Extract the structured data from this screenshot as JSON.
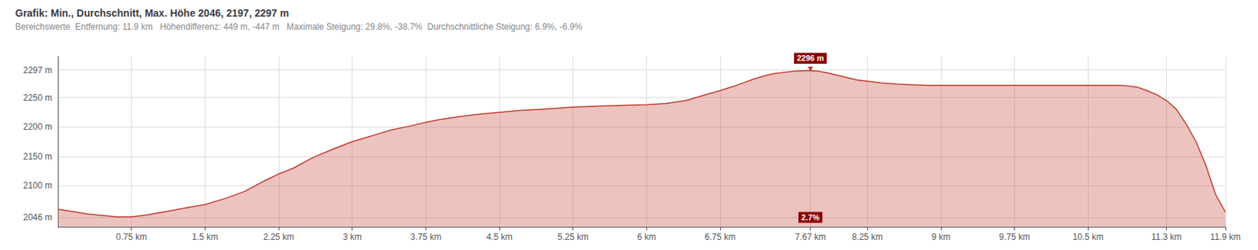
{
  "chart_data": {
    "type": "line",
    "title": "Grafik: Min., Durchschnitt, Max. Höhe 2046, 2197, 2297 m",
    "subtitle": "Bereichswerte  Entfernung: 11.9 km   Höhendifferenz: 449 m, -447 m   Maximale Steigung: 29.8%, -38.7%  Durchschnittliche Steigung: 6.9%, -6.9%",
    "x": [
      0.0,
      0.3,
      0.6,
      0.75,
      0.9,
      1.1,
      1.3,
      1.5,
      1.7,
      1.9,
      2.1,
      2.25,
      2.4,
      2.6,
      2.8,
      3.0,
      3.2,
      3.4,
      3.6,
      3.75,
      3.9,
      4.1,
      4.3,
      4.5,
      4.7,
      4.9,
      5.1,
      5.25,
      5.4,
      5.6,
      5.8,
      6.0,
      6.2,
      6.4,
      6.6,
      6.75,
      6.9,
      7.0,
      7.1,
      7.2,
      7.3,
      7.4,
      7.5,
      7.6,
      7.67,
      7.75,
      7.85,
      7.95,
      8.05,
      8.15,
      8.25,
      8.4,
      8.55,
      8.7,
      8.85,
      9.0,
      9.15,
      9.3,
      9.45,
      9.6,
      9.75,
      9.9,
      10.0,
      10.1,
      10.2,
      10.3,
      10.4,
      10.5,
      10.6,
      10.7,
      10.8,
      10.9,
      11.0,
      11.1,
      11.2,
      11.3,
      11.4,
      11.5,
      11.6,
      11.7,
      11.8,
      11.9
    ],
    "values": [
      2060,
      2052,
      2047,
      2047,
      2050,
      2056,
      2062,
      2068,
      2078,
      2090,
      2108,
      2120,
      2130,
      2148,
      2162,
      2175,
      2185,
      2195,
      2202,
      2208,
      2213,
      2218,
      2222,
      2225,
      2228,
      2230,
      2232,
      2234,
      2235,
      2236,
      2237,
      2238,
      2240,
      2245,
      2255,
      2262,
      2270,
      2276,
      2282,
      2287,
      2291,
      2293,
      2295,
      2296,
      2296,
      2295,
      2292,
      2288,
      2284,
      2280,
      2278,
      2275,
      2273,
      2272,
      2271,
      2271,
      2271,
      2271,
      2271,
      2271,
      2271,
      2271,
      2271,
      2271,
      2271,
      2271,
      2271,
      2271,
      2271,
      2271,
      2271,
      2270,
      2268,
      2262,
      2255,
      2245,
      2230,
      2205,
      2175,
      2135,
      2085,
      2055
    ],
    "color": "#c0392b",
    "xlim": [
      0,
      11.9
    ],
    "xticks": [
      {
        "value": 0.75,
        "label": "0.75 km"
      },
      {
        "value": 1.5,
        "label": "1.5 km"
      },
      {
        "value": 2.25,
        "label": "2.25 km"
      },
      {
        "value": 3.0,
        "label": "3 km"
      },
      {
        "value": 3.75,
        "label": "3.75 km"
      },
      {
        "value": 4.5,
        "label": "4.5 km"
      },
      {
        "value": 5.25,
        "label": "5.25 km"
      },
      {
        "value": 6.0,
        "label": "6 km"
      },
      {
        "value": 6.75,
        "label": "6.75 km"
      },
      {
        "value": 7.67,
        "label": "7.67 km"
      },
      {
        "value": 8.25,
        "label": "8.25 km"
      },
      {
        "value": 9.0,
        "label": "9 km"
      },
      {
        "value": 9.75,
        "label": "9.75 km"
      },
      {
        "value": 10.5,
        "label": "10.5 km"
      },
      {
        "value": 11.3,
        "label": "11.3 km"
      },
      {
        "value": 11.9,
        "label": "11.9 km"
      }
    ],
    "ylim": [
      2030,
      2320
    ],
    "yticks": [
      {
        "value": 2046,
        "label": "2046 m"
      },
      {
        "value": 2100,
        "label": "2100 m"
      },
      {
        "value": 2150,
        "label": "2150 m"
      },
      {
        "value": 2200,
        "label": "2200 m"
      },
      {
        "value": 2250,
        "label": "2250 m"
      },
      {
        "value": 2297,
        "label": "2297 m"
      }
    ],
    "grid": true,
    "annotations": [
      {
        "text": "2296 m",
        "x": 7.67,
        "y": 2296
      },
      {
        "text": "2.7%",
        "x": 7.67,
        "y": 2046
      }
    ]
  }
}
